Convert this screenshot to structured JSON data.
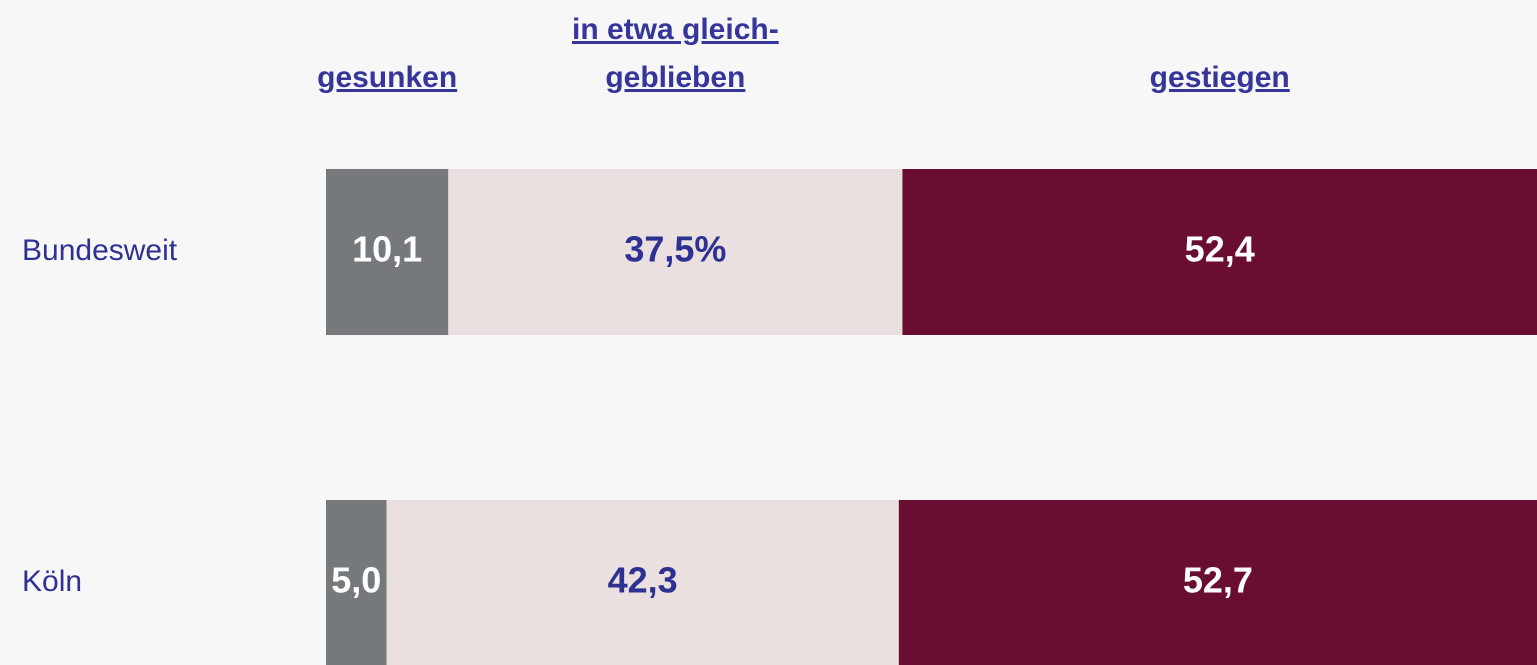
{
  "chart_data": {
    "type": "stacked-bar-horizontal",
    "categories": [
      "Bundesweit",
      "Köln"
    ],
    "series": [
      {
        "name": "gesunken",
        "color": "#76797c",
        "label_color": "#ffffff",
        "values": [
          10.1,
          5.0
        ],
        "value_labels": [
          "10,1",
          "5,0"
        ]
      },
      {
        "name": "in etwa gleich-\ngeblieben",
        "color": "#e9e0df",
        "label_color": "#2e3192",
        "values": [
          37.5,
          42.3
        ],
        "value_labels": [
          "37,5%",
          "42,3"
        ]
      },
      {
        "name": "gestiegen",
        "color": "#6a0d32",
        "label_color": "#ffffff",
        "values": [
          52.4,
          52.7
        ],
        "value_labels": [
          "52,4",
          "52,7"
        ]
      }
    ],
    "xlim": [
      0,
      100
    ]
  }
}
